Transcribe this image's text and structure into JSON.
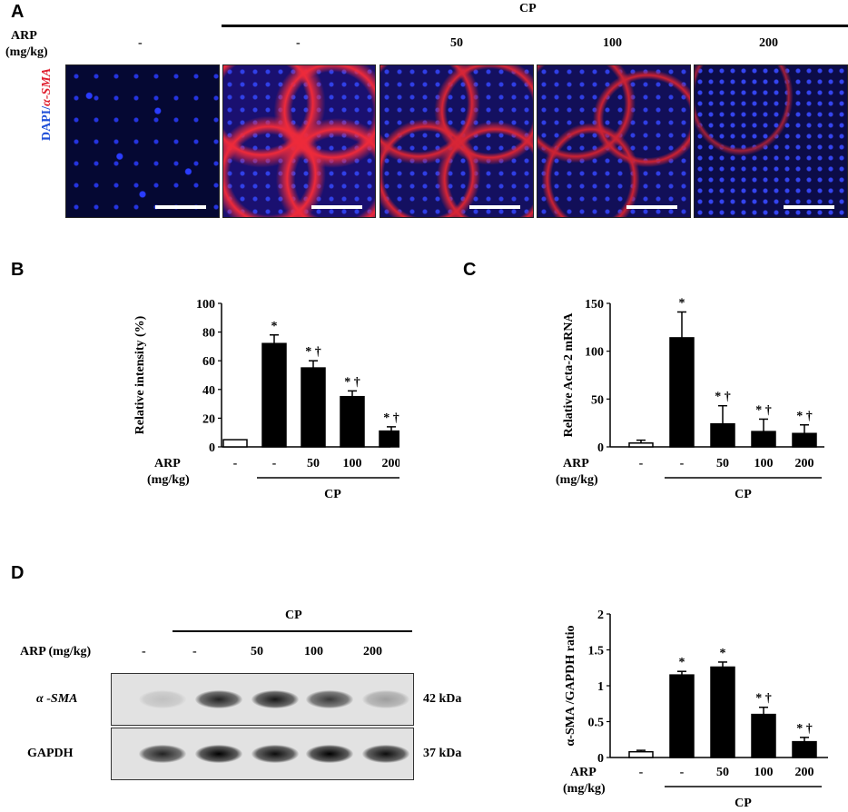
{
  "colors": {
    "blue_stain": "#0a1a9a",
    "red_stain": "#e02030",
    "bar_fill": "#000000",
    "control_fill": "#ffffff"
  },
  "panelA": {
    "letter": "A",
    "cp_label": "CP",
    "arp_label_line1": "ARP",
    "arp_label_line2": "(mg/kg)",
    "doses": [
      "-",
      "-",
      "50",
      "100",
      "200"
    ],
    "stain_label_blue": "DAPI/",
    "stain_label_red": "α-SMA"
  },
  "panelD": {
    "letter": "D",
    "cp_label": "CP",
    "arp_label": "ARP (mg/kg)",
    "doses": [
      "-",
      "-",
      "50",
      "100",
      "200"
    ],
    "row1_label": "α -SMA",
    "row2_label": "GAPDH",
    "row1_kda": "42 kDa",
    "row2_kda": "37 kDa",
    "row1_intensity": [
      0.15,
      0.85,
      0.9,
      0.75,
      0.3
    ],
    "row2_intensity": [
      0.85,
      1.0,
      0.95,
      1.0,
      0.95
    ]
  },
  "chart_data": [
    {
      "id": "B",
      "type": "bar",
      "letter": "B",
      "ylabel": "Relative intensity (%)",
      "ylim": [
        0,
        100
      ],
      "yticks": [
        "0",
        "20",
        "40",
        "60",
        "80",
        "100"
      ],
      "categories": [
        "-",
        "-",
        "50",
        "100",
        "200"
      ],
      "values": [
        5,
        72,
        55,
        35,
        11
      ],
      "errors": [
        0,
        6,
        5,
        4,
        3
      ],
      "annotations": [
        "",
        "*",
        "* †",
        "* †",
        "* †"
      ],
      "arp_label_line1": "ARP",
      "arp_label_line2": "(mg/kg)",
      "group_label": "CP"
    },
    {
      "id": "C",
      "type": "bar",
      "letter": "C",
      "ylabel": "Relative Acta-2 mRNA",
      "ylim": [
        0,
        150
      ],
      "yticks": [
        "0",
        "50",
        "100",
        "150"
      ],
      "categories": [
        "-",
        "-",
        "50",
        "100",
        "200"
      ],
      "values": [
        4,
        114,
        24,
        16,
        14
      ],
      "errors": [
        3,
        27,
        19,
        13,
        9
      ],
      "annotations": [
        "",
        "*",
        "* †",
        "* †",
        "* †"
      ],
      "arp_label_line1": "ARP",
      "arp_label_line2": "(mg/kg)",
      "group_label": "CP"
    },
    {
      "id": "D",
      "type": "bar",
      "ylabel": "α-SMA /GAPDH ratio",
      "ylim": [
        0,
        2
      ],
      "yticks": [
        "0",
        "0.5",
        "1",
        "1.5",
        "2"
      ],
      "categories": [
        "-",
        "-",
        "50",
        "100",
        "200"
      ],
      "values": [
        0.08,
        1.15,
        1.26,
        0.6,
        0.22
      ],
      "errors": [
        0.02,
        0.05,
        0.07,
        0.1,
        0.06
      ],
      "annotations": [
        "",
        "*",
        "*",
        "* †",
        "* †"
      ],
      "arp_label_line1": "ARP",
      "arp_label_line2": "(mg/kg)",
      "group_label": "CP"
    }
  ]
}
